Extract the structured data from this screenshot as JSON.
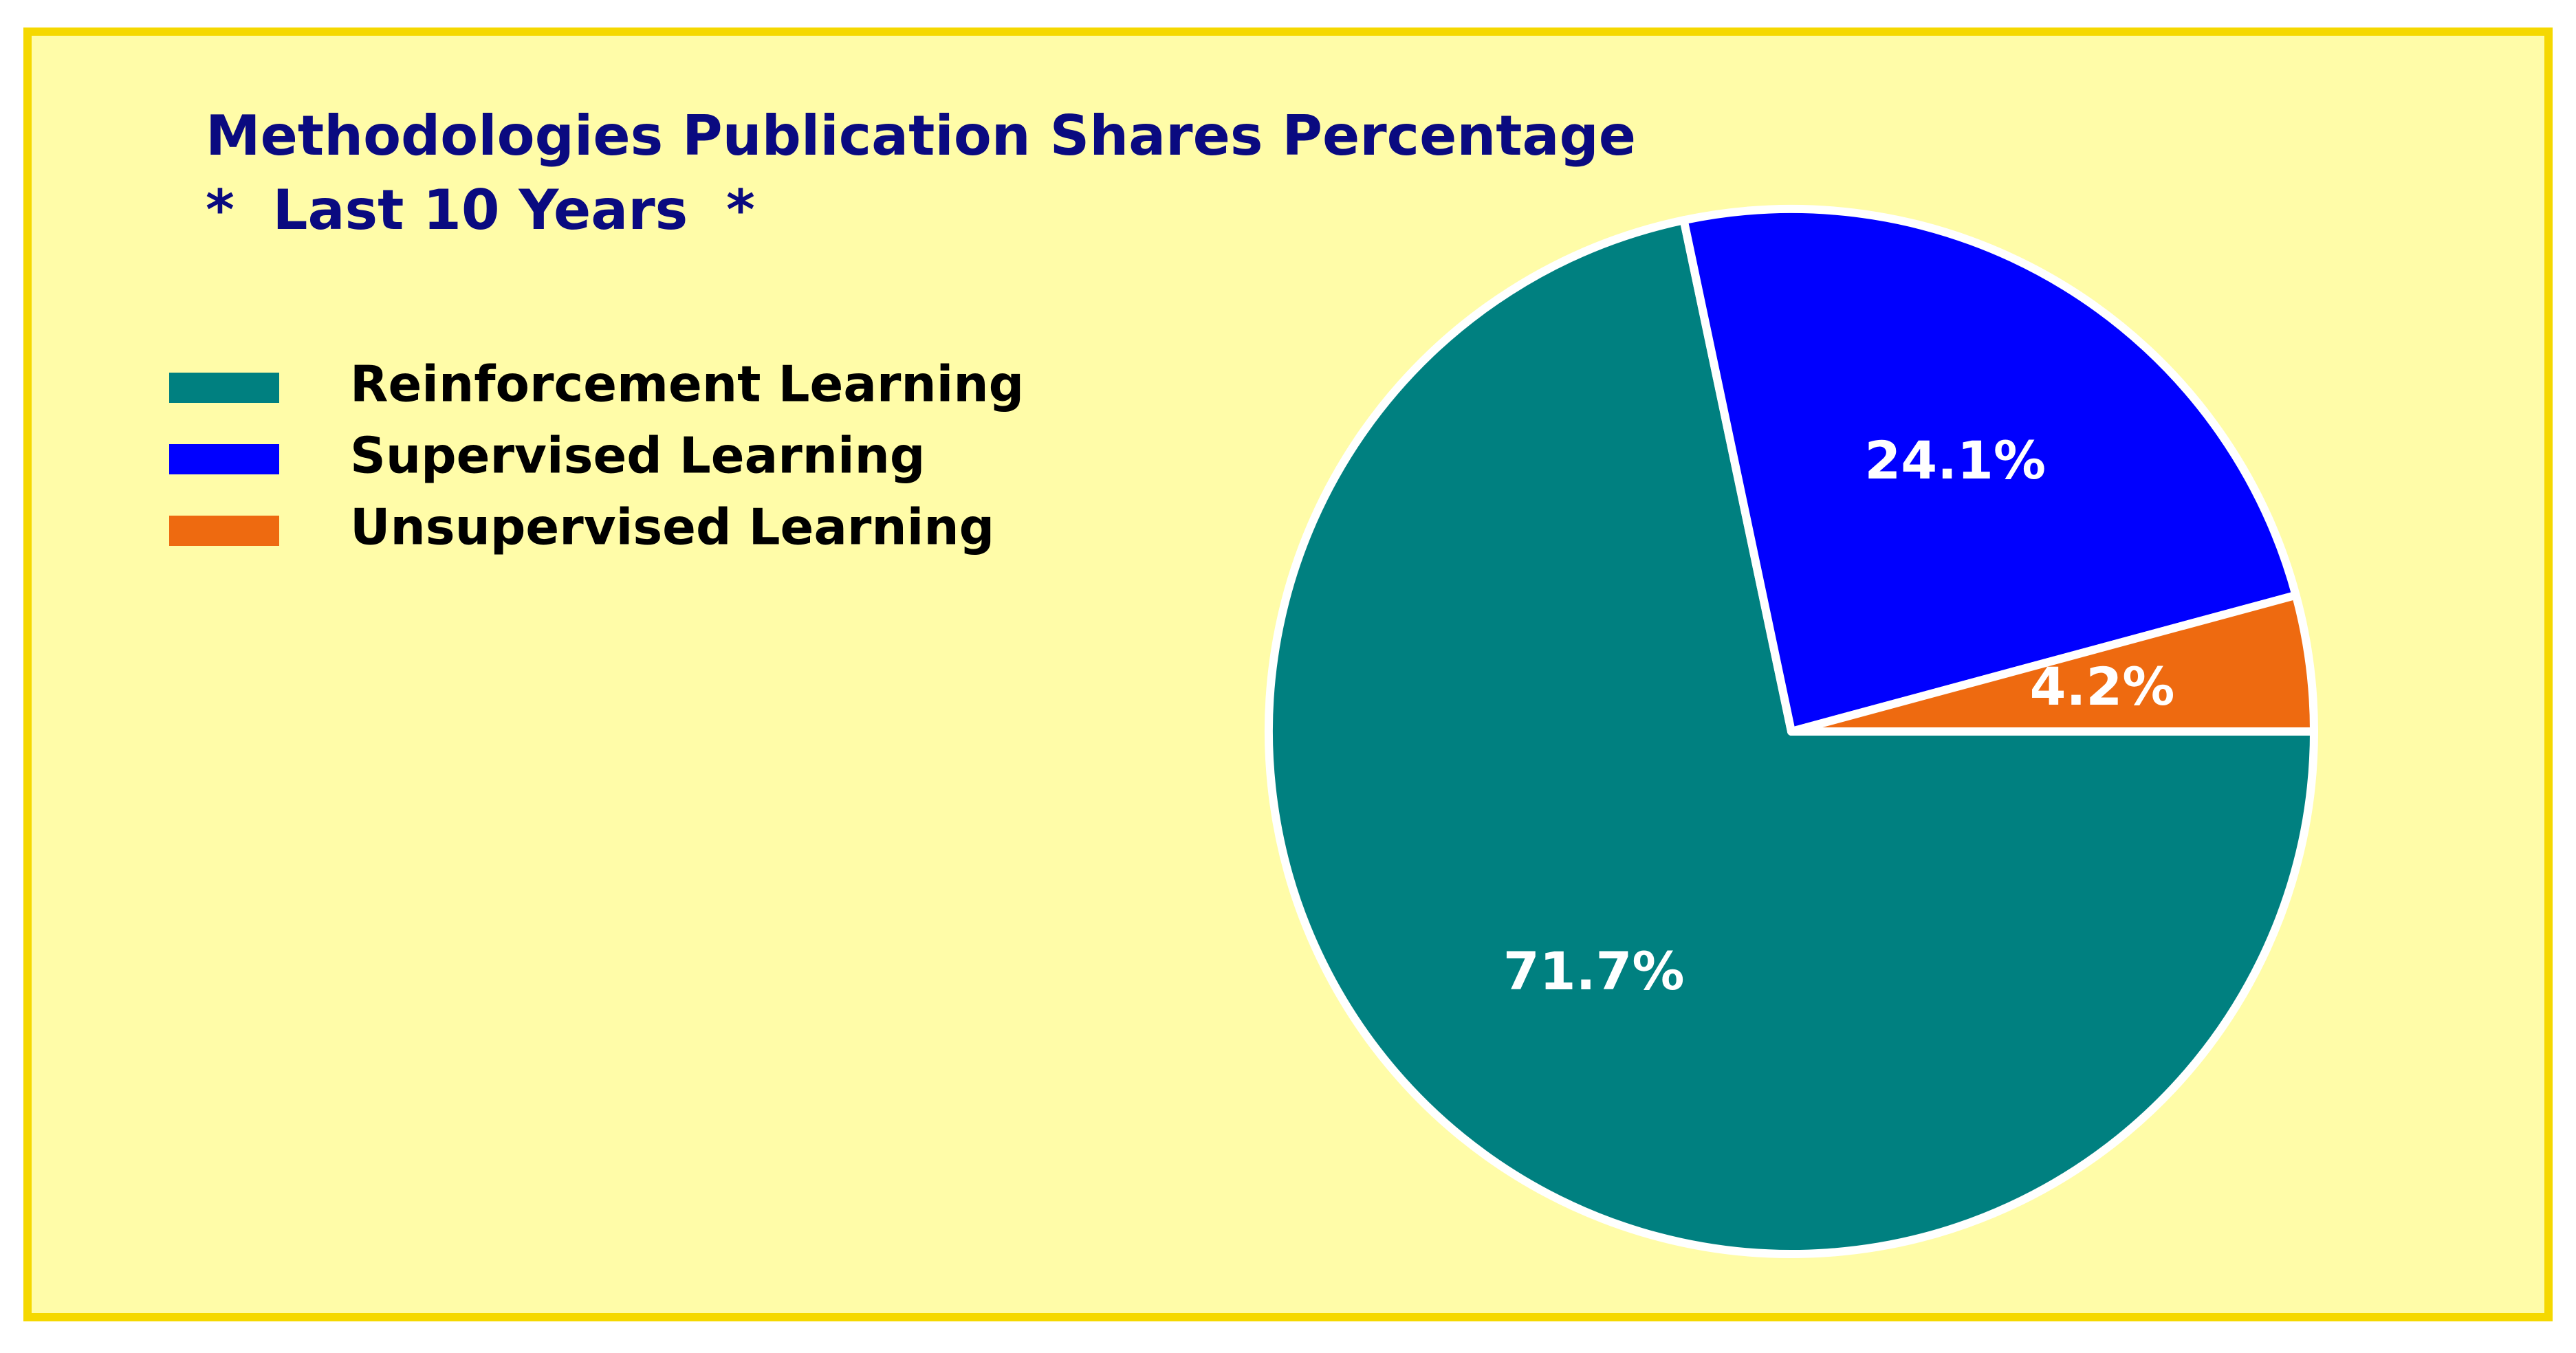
{
  "chart_data": {
    "type": "pie",
    "title": [
      "Methodologies Publication Shares Percentage",
      "*  Last 10 Years  *"
    ],
    "categories": [
      "Reinforcement Learning",
      "Supervised Learning",
      "Unsupervised Learning"
    ],
    "values": [
      71.7,
      24.1,
      4.2
    ],
    "value_labels": [
      "71.7%",
      "24.1%",
      "4.2%"
    ],
    "colors": [
      "#008080",
      "#0000ff",
      "#ee6a10"
    ],
    "legend": "upper left"
  }
}
